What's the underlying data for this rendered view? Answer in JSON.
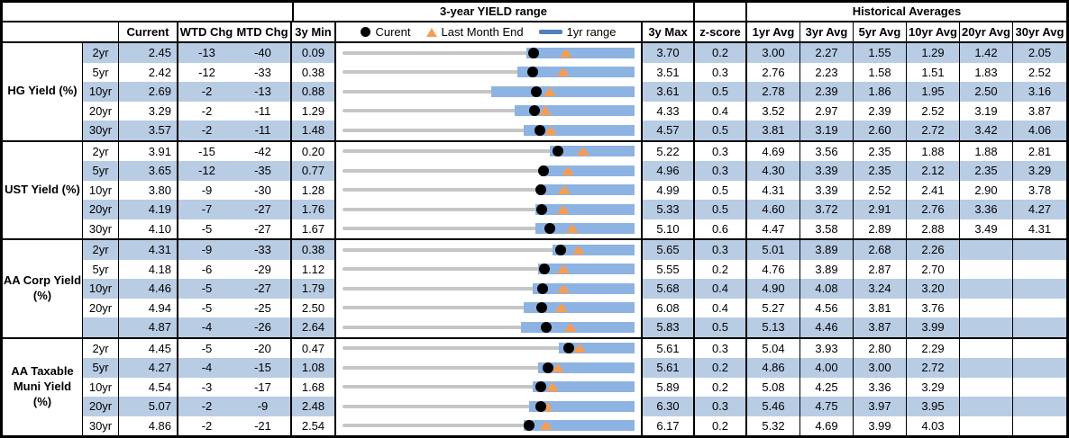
{
  "colors": {
    "row_shade": "#b8cce4",
    "bar_blue": "#8db3e2",
    "legend_bar_blue": "#4f81bd",
    "marker_orange": "#f79d52",
    "range_line_gray": "#c6c6c6",
    "marker_black": "#000000"
  },
  "header": {
    "range_title": "3-year YIELD range",
    "hist_title": "Historical Averages",
    "current": "Current",
    "wtd": "WTD Chg",
    "mtd": "MTD Chg",
    "min": "3y Min",
    "max": "3y Max",
    "z": "z-score",
    "avg": [
      "1yr Avg",
      "3yr Avg",
      "5yr Avg",
      "10yr Avg",
      "20yr Avg",
      "30yr Avg"
    ],
    "legend_current": "Curent",
    "legend_last_month": "Last Month End",
    "legend_range": "1yr range"
  },
  "chart_data": {
    "type": "table",
    "title": "3-year YIELD range",
    "notes": "Each row shows a 3-year yield range strip chart scaled from 3y Min to 3y Max; blue bar = 1yr range (bar_frac = estimated left edge of 1yr range as fraction of 3y span, bar extends to 3y Max), black dot = Current, orange triangle = Last Month End (Current minus MTD change in bp).",
    "groups": [
      {
        "label": "HG Yield (%)",
        "rows": [
          {
            "tenor": "2yr",
            "current": "2.45",
            "wtd_chg": "-13",
            "mtd_chg": "-40",
            "min_3y": "0.09",
            "max_3y": "3.70",
            "z_score": "0.2",
            "avgs": [
              "3.00",
              "2.27",
              "1.55",
              "1.29",
              "1.42",
              "2.05"
            ],
            "bar_frac": 0.63
          },
          {
            "tenor": "5yr",
            "current": "2.42",
            "wtd_chg": "-12",
            "mtd_chg": "-33",
            "min_3y": "0.38",
            "max_3y": "3.51",
            "z_score": "0.3",
            "avgs": [
              "2.76",
              "2.23",
              "1.58",
              "1.51",
              "1.83",
              "2.52"
            ],
            "bar_frac": 0.6
          },
          {
            "tenor": "10yr",
            "current": "2.69",
            "wtd_chg": "-2",
            "mtd_chg": "-13",
            "min_3y": "0.88",
            "max_3y": "3.61",
            "z_score": "0.5",
            "avgs": [
              "2.78",
              "2.39",
              "1.86",
              "1.95",
              "2.50",
              "3.16"
            ],
            "bar_frac": 0.51
          },
          {
            "tenor": "20yr",
            "current": "3.29",
            "wtd_chg": "-2",
            "mtd_chg": "-11",
            "min_3y": "1.29",
            "max_3y": "4.33",
            "z_score": "0.4",
            "avgs": [
              "3.52",
              "2.97",
              "2.39",
              "2.52",
              "3.19",
              "3.87"
            ],
            "bar_frac": 0.59
          },
          {
            "tenor": "30yr",
            "current": "3.57",
            "wtd_chg": "-2",
            "mtd_chg": "-11",
            "min_3y": "1.48",
            "max_3y": "4.57",
            "z_score": "0.5",
            "avgs": [
              "3.81",
              "3.19",
              "2.60",
              "2.72",
              "3.42",
              "4.06"
            ],
            "bar_frac": 0.62
          }
        ]
      },
      {
        "label": "UST Yield (%)",
        "rows": [
          {
            "tenor": "2yr",
            "current": "3.91",
            "wtd_chg": "-15",
            "mtd_chg": "-42",
            "min_3y": "0.20",
            "max_3y": "5.22",
            "z_score": "0.3",
            "avgs": [
              "4.69",
              "3.56",
              "2.35",
              "1.88",
              "1.88",
              "2.81"
            ],
            "bar_frac": 0.71
          },
          {
            "tenor": "5yr",
            "current": "3.65",
            "wtd_chg": "-12",
            "mtd_chg": "-35",
            "min_3y": "0.77",
            "max_3y": "4.96",
            "z_score": "0.3",
            "avgs": [
              "4.30",
              "3.39",
              "2.35",
              "2.12",
              "2.35",
              "3.29"
            ],
            "bar_frac": 0.68
          },
          {
            "tenor": "10yr",
            "current": "3.80",
            "wtd_chg": "-9",
            "mtd_chg": "-30",
            "min_3y": "1.28",
            "max_3y": "4.99",
            "z_score": "0.5",
            "avgs": [
              "4.31",
              "3.39",
              "2.52",
              "2.41",
              "2.90",
              "3.78"
            ],
            "bar_frac": 0.67
          },
          {
            "tenor": "20yr",
            "current": "4.19",
            "wtd_chg": "-7",
            "mtd_chg": "-27",
            "min_3y": "1.76",
            "max_3y": "5.33",
            "z_score": "0.5",
            "avgs": [
              "4.60",
              "3.72",
              "2.91",
              "2.76",
              "3.36",
              "4.27"
            ],
            "bar_frac": 0.66
          },
          {
            "tenor": "30yr",
            "current": "4.10",
            "wtd_chg": "-5",
            "mtd_chg": "-27",
            "min_3y": "1.67",
            "max_3y": "5.10",
            "z_score": "0.6",
            "avgs": [
              "4.47",
              "3.58",
              "2.89",
              "2.88",
              "3.49",
              "4.31"
            ],
            "bar_frac": 0.66
          }
        ]
      },
      {
        "label": "AA Corp Yield\n(%)",
        "rows": [
          {
            "tenor": "2yr",
            "current": "4.31",
            "wtd_chg": "-9",
            "mtd_chg": "-33",
            "min_3y": "0.38",
            "max_3y": "5.65",
            "z_score": "0.3",
            "avgs": [
              "5.01",
              "3.89",
              "2.68",
              "2.26",
              "",
              ""
            ],
            "bar_frac": 0.72
          },
          {
            "tenor": "5yr",
            "current": "4.18",
            "wtd_chg": "-6",
            "mtd_chg": "-29",
            "min_3y": "1.12",
            "max_3y": "5.55",
            "z_score": "0.2",
            "avgs": [
              "4.76",
              "3.89",
              "2.87",
              "2.70",
              "",
              ""
            ],
            "bar_frac": 0.67
          },
          {
            "tenor": "10yr",
            "current": "4.46",
            "wtd_chg": "-5",
            "mtd_chg": "-27",
            "min_3y": "1.79",
            "max_3y": "5.68",
            "z_score": "0.4",
            "avgs": [
              "4.90",
              "4.08",
              "3.24",
              "3.20",
              "",
              ""
            ],
            "bar_frac": 0.65
          },
          {
            "tenor": "20yr",
            "current": "4.94",
            "wtd_chg": "-5",
            "mtd_chg": "-25",
            "min_3y": "2.50",
            "max_3y": "6.08",
            "z_score": "0.4",
            "avgs": [
              "5.27",
              "4.56",
              "3.81",
              "3.76",
              "",
              ""
            ],
            "bar_frac": 0.62
          },
          {
            "tenor": "",
            "current": "4.87",
            "wtd_chg": "-4",
            "mtd_chg": "-26",
            "min_3y": "2.64",
            "max_3y": "5.83",
            "z_score": "0.5",
            "avgs": [
              "5.13",
              "4.46",
              "3.87",
              "3.99",
              "",
              ""
            ],
            "bar_frac": 0.61
          }
        ]
      },
      {
        "label": "AA Taxable\nMuni Yield\n(%)",
        "rows": [
          {
            "tenor": "2yr",
            "current": "4.45",
            "wtd_chg": "-5",
            "mtd_chg": "-20",
            "min_3y": "0.47",
            "max_3y": "5.61",
            "z_score": "0.3",
            "avgs": [
              "5.04",
              "3.93",
              "2.80",
              "2.29",
              "",
              ""
            ],
            "bar_frac": 0.74
          },
          {
            "tenor": "5yr",
            "current": "4.27",
            "wtd_chg": "-4",
            "mtd_chg": "-15",
            "min_3y": "1.08",
            "max_3y": "5.61",
            "z_score": "0.2",
            "avgs": [
              "4.86",
              "4.00",
              "3.00",
              "2.72",
              "",
              ""
            ],
            "bar_frac": 0.67
          },
          {
            "tenor": "10yr",
            "current": "4.54",
            "wtd_chg": "-3",
            "mtd_chg": "-17",
            "min_3y": "1.68",
            "max_3y": "5.89",
            "z_score": "0.2",
            "avgs": [
              "5.08",
              "4.25",
              "3.36",
              "3.29",
              "",
              ""
            ],
            "bar_frac": 0.65
          },
          {
            "tenor": "20yr",
            "current": "5.07",
            "wtd_chg": "-2",
            "mtd_chg": "-9",
            "min_3y": "2.48",
            "max_3y": "6.30",
            "z_score": "0.3",
            "avgs": [
              "5.46",
              "4.75",
              "3.97",
              "3.95",
              "",
              ""
            ],
            "bar_frac": 0.64
          },
          {
            "tenor": "30yr",
            "current": "4.86",
            "wtd_chg": "-2",
            "mtd_chg": "-21",
            "min_3y": "2.54",
            "max_3y": "6.17",
            "z_score": "0.2",
            "avgs": [
              "5.32",
              "4.69",
              "3.99",
              "4.03",
              "",
              ""
            ],
            "bar_frac": 0.62
          }
        ]
      }
    ]
  }
}
